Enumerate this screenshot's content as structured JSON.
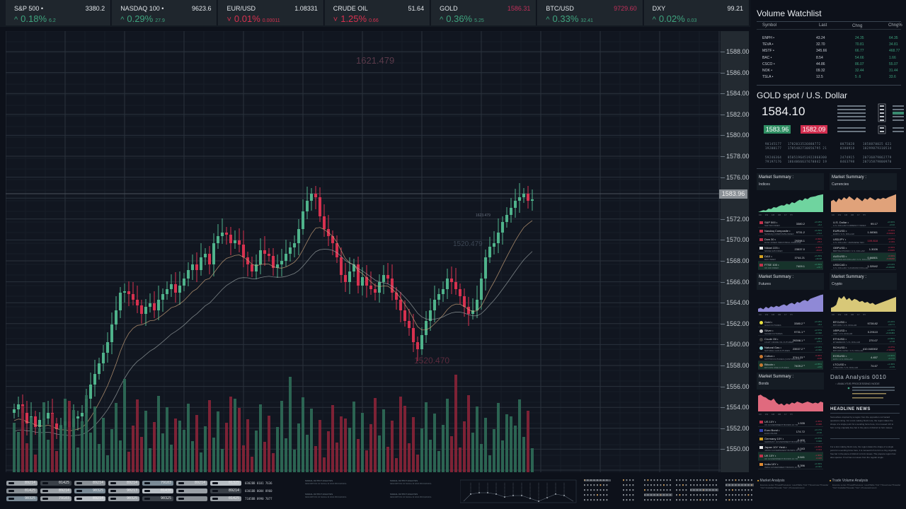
{
  "tickers": [
    {
      "name": "S&P 500 •",
      "price": "3380.2",
      "direction": "up",
      "change_pct": "0.18%",
      "change": "6.2",
      "price_color": "#e2e6ea"
    },
    {
      "name": "NASDAQ 100 •",
      "price": "9623.6",
      "direction": "up",
      "change_pct": "0.29%",
      "change": "27.9",
      "price_color": "#e2e6ea"
    },
    {
      "name": "EUR/USD",
      "price": "1.08331",
      "direction": "down",
      "change_pct": "0.01%",
      "change": "0.00011",
      "price_color": "#e2e6ea"
    },
    {
      "name": "CRUDE OIL",
      "price": "51.64",
      "direction": "down",
      "change_pct": "1.25%",
      "change": "0.66",
      "price_color": "#e2e6ea"
    },
    {
      "name": "GOLD",
      "price": "1586.31",
      "direction": "up",
      "change_pct": "0.36%",
      "change": "5.25",
      "price_color": "#c0305a"
    },
    {
      "name": "BTC/USD",
      "price": "9729.60",
      "direction": "up",
      "change_pct": "0.33%",
      "change": "32.41",
      "price_color": "#c0305a"
    },
    {
      "name": "DXY",
      "price": "99.21",
      "direction": "up",
      "change_pct": "0.02%",
      "change": "0.03",
      "price_color": "#e2e6ea"
    }
  ],
  "icons": {
    "up": "^",
    "down": "˅"
  },
  "chart": {
    "y_axis": [
      "1588.00",
      "1586.00",
      "1584.00",
      "1582.00",
      "1580.00",
      "1578.00",
      "1576.00",
      "1574.00",
      "1572.00",
      "1570.00",
      "1568.00",
      "1566.00",
      "1564.00",
      "1562.00",
      "1560.00",
      "1558.00",
      "1556.00",
      "1554.00",
      "1552.00",
      "1550.00"
    ],
    "current_price_tag": "1583.96",
    "watermarks": {
      "high": "1621.479",
      "mid": "1520.479",
      "low": "1520.470",
      "small": "1623.479"
    },
    "colors": {
      "up": "#4fb38b",
      "down": "#d7314f",
      "grid": "#2a323c",
      "ma1": "#c9a27a",
      "ma2": "#a8b0b0"
    }
  },
  "watchlist": {
    "title": "Volume Watchlist",
    "columns": [
      "Symbol",
      "Last",
      "Chng",
      "Chng%"
    ],
    "rows": [
      {
        "symbol": "ENPH •",
        "last": "43.24",
        "chng": "24.35",
        "chngp": "64.35"
      },
      {
        "symbol": "TEVA •",
        "last": "32.70",
        "chng": "70.81",
        "chngp": "34.81"
      },
      {
        "symbol": "MSTF •",
        "last": "345.66",
        "chng": "66.77",
        "chngp": "468.77"
      },
      {
        "symbol": "BAC •",
        "last": "8.54",
        "chng": "54.66",
        "chngp": "1.66"
      },
      {
        "symbol": "CSCO •",
        "last": "44.86",
        "chng": "86.07",
        "chngp": "55.07"
      },
      {
        "symbol": "NOK •",
        "last": "09.32",
        "chng": "32.44",
        "chngp": "31.44"
      },
      {
        "symbol": "TSLA •",
        "last": "12.5",
        "chng": "5 .6",
        "chngp": "33.6"
      }
    ]
  },
  "gold_spot": {
    "title": "GOLD spot / U.S. Dollar",
    "price": "1584.10",
    "bid": "1583.96",
    "ask": "1582.09",
    "numbers_left": "90145177   1782033526880772\n19200177   1785482730856795 21",
    "numbers_right": "0075028    1858870025 621\n0300918    10299879310514",
    "numbers_left2": "59246364   8505196451922868300\n79197176   1864066637670842 19",
    "numbers_right2": "2474915    20736879862779\n8463798    20735879800970"
  },
  "panels": [
    {
      "title": "Market Summary :",
      "subtitle": "Indices",
      "color": "#6fd49f",
      "timeframes": "1D 1W 1M 3M 1Y 5Y",
      "rows": [
        {
          "name": "S&P 500 •",
          "sub": "S&P 500 INDEX",
          "value": "3380.2",
          "ch1": "+0.18%",
          "ch2": "+6.2",
          "dir": "up",
          "marker": "#c0304a"
        },
        {
          "name": "Nasdaq Composite •",
          "sub": "NASDAQ COMPOSITE INDEX",
          "value": "9731.2",
          "ch1": "+0.29%",
          "ch2": "+73.2",
          "dir": "up",
          "marker": "#c0304a"
        },
        {
          "name": "Dow 30 •",
          "sub": "DOW JONES INDUSTRIAL AVERAGE",
          "value": "29398.1",
          "ch1": "-0.09%",
          "ch2": "-25.2",
          "dir": "down",
          "marker": "#c0304a"
        },
        {
          "name": "Nikkei 225 •",
          "sub": "NIKKEI 225 INDEX",
          "value": "23537.0",
          "ch1": "-1.05%",
          "ch2": "-260.8",
          "dir": "down",
          "marker": "#e8e8e8"
        },
        {
          "name": "DAX •",
          "sub": "DAX INDEX",
          "value": "3744.21",
          "ch1": "+0.29%",
          "ch2": "+39.68",
          "dir": "up",
          "marker": "#d4a020"
        },
        {
          "name": "FTSE 100 •",
          "sub": "UK 100 INDEX",
          "value": "7409.1",
          "ch1": "+0.39%",
          "ch2": "+28.7",
          "dir": "up",
          "marker": "#c0304a",
          "highlight": true
        }
      ]
    },
    {
      "title": "Market Summary :",
      "subtitle": "Currencies",
      "color": "#e0a27a",
      "timeframes": "1D 1W 1M 3M 1Y 5Y",
      "rows": [
        {
          "name": "U.S. Dollar •",
          "sub": "U.S. DOLLAR CURRENCY INDEX",
          "value": "99.17",
          "ch1": "+0.02%",
          "ch2": "+0.02",
          "dir": "up"
        },
        {
          "name": "EURUSD •",
          "sub": "EURO / U.S. DOLLAR",
          "value": "1.08361",
          "ch1": "-0.01%",
          "ch2": "-0.00013",
          "dir": "down"
        },
        {
          "name": "USDJPY •",
          "sub": "U.S. DOLLAR / JAPANESE YEN",
          "value": "109.818",
          "ch1": "-0.16%",
          "ch2": "-0.181",
          "dir": "down",
          "valred": true
        },
        {
          "name": "GBPUSD •",
          "sub": "BRITISH POUND / U.S. DOLLAR",
          "value": "1.3026",
          "ch1": "-0.03%",
          "ch2": "-0.0005",
          "dir": "down"
        },
        {
          "name": "AUDUSD •",
          "sub": "AUSTRALIAN DOLLAR / U.S. DOLLAR",
          "value": "0.66801",
          "ch1": "-0.03%",
          "ch2": "-0.00230",
          "dir": "down",
          "highlight": true
        },
        {
          "name": "USDCAD •",
          "sub": "U.S. DOLLAR / CANADIAN DOLLAR",
          "value": "1.32642",
          "ch1": "+0.13%",
          "ch2": "+0.00180",
          "dir": "up"
        }
      ]
    },
    {
      "title": "Market Summary :",
      "subtitle": "Futures",
      "color": "#8f89d6",
      "timeframes": "1D 1W 1M 3M 1Y 5Y",
      "rows": [
        {
          "name": "Gold •",
          "sub": "GOLD FUTURES",
          "value": "3380.2 ⁰",
          "ch1": "+0.18%",
          "ch2": "+6.2",
          "dir": "up",
          "marker": "#e8e040",
          "round": true
        },
        {
          "name": "Silver •",
          "sub": "SILVER FUTURES",
          "value": "9731.1 ⁰",
          "ch1": "+0.57%",
          "ch2": "+0.090",
          "dir": "up",
          "marker": "#c8c8c8",
          "round": true
        },
        {
          "name": "Crude Oil •",
          "sub": "LIGHT CRUDE OIL FUTURES",
          "value": "29398.1 ⁰",
          "ch1": "+0.08%",
          "ch2": "+25.2",
          "dir": "up",
          "marker": "#404040",
          "round": true
        },
        {
          "name": "Natural Gas •",
          "sub": "NATURAL GAS FUTURES",
          "value": "23537.2 ⁰",
          "ch1": "+1.12%",
          "ch2": "+0.090",
          "dir": "up",
          "marker": "#8ad8d8",
          "round": true
        },
        {
          "name": "Cotton •",
          "sub": "COTTON FUTURES (CONTINUOUS)",
          "value": "3744.23 ⁰",
          "ch1": "-0.06%",
          "ch2": "-0.05",
          "dir": "down",
          "marker": "#c87830",
          "round": true
        },
        {
          "name": "Bitcoin •",
          "sub": "BITCOIN CME FUTURES",
          "value": "7409.2 ⁰",
          "ch1": "+0.85%",
          "ch2": "+225",
          "dir": "up",
          "marker": "#c87830",
          "round": true,
          "highlight": true
        }
      ]
    },
    {
      "title": "Market Summary :",
      "subtitle": "Crypto",
      "color": "#d8c878",
      "timeframes": "1D 1W 1M 3M 1Y 5Y",
      "rows": [
        {
          "name": "BTCUSD •",
          "sub": "BITCOIN / U.S. DOLLAR",
          "value": "9728.82",
          "ch1": "+0.24%",
          "ch2": "+23.71",
          "dir": "up"
        },
        {
          "name": "XRPUSD •",
          "sub": "XRP / U.S. DOLLAR",
          "value": "0.29110",
          "ch1": "+1.33%",
          "ch2": "+0.00484",
          "dir": "up"
        },
        {
          "name": "ETHUSD •",
          "sub": "ETHEREUM / U.S. DOLLAR",
          "value": "270.07",
          "ch1": "+0.89%",
          "ch2": "+2.38",
          "dir": "up"
        },
        {
          "name": "BCHUSD •",
          "sub": "BITCOIN CASH / U.S. DOLLAR",
          "value": "410.040002",
          "ch1": "-0.07%",
          "ch2": "-2.99000",
          "dir": "down"
        },
        {
          "name": "EOSUSD •",
          "sub": "EOS / U.S. DOLLAR",
          "value": "4.457",
          "ch1": "+3.90%",
          "ch2": "+0.172",
          "dir": "up",
          "highlight": true
        },
        {
          "name": "LTCUSD •",
          "sub": "LITECOIN / U.S. DOLLAR",
          "value": "74.67",
          "ch1": "+1.49%",
          "ch2": "+1.09",
          "dir": "up"
        }
      ]
    },
    {
      "title": "Market Summary :",
      "subtitle": "Bonds",
      "color": "#e06a7e",
      "timeframes": "1D 1W 1M 3M 1Y 5Y",
      "rows": [
        {
          "name": "US 10Y •",
          "sub": "US GOVERNMENT BONDS 10 YR",
          "value": "1.535",
          "ch1": "-2.35%",
          "ch2": "-0.036",
          "dir": "down",
          "marker": "#c0304a"
        },
        {
          "name": "Euro Bund •",
          "sub": "EURO BUND",
          "value": "174.72",
          "ch1": "+0.17%",
          "ch2": "+0.30",
          "dir": "up",
          "marker": "#3040b0"
        },
        {
          "name": "Germany 10Y •",
          "sub": "GERMANY GOVERNMENT BONDS 10 YR",
          "value": "-0.400",
          "ch1": "+0.07%",
          "ch2": "0.000",
          "dir": "up",
          "marker": "#d4a020"
        },
        {
          "name": "Japan 10Y Yield •",
          "sub": "JAPAN GOVERNMENT BONDS 10 YR",
          "value": "-0.043",
          "ch1": "+1.26%",
          "ch2": "-0.014",
          "dir": "down",
          "marker": "#e8e8e8"
        },
        {
          "name": "UK 10Y •",
          "sub": "UK GOVERNMENT BONDS 10 YR",
          "value": "0.641",
          "ch1": "-1.30%",
          "ch2": "-0.015",
          "dir": "down",
          "marker": "#c0304a",
          "highlight": true
        },
        {
          "name": "India 10Y •",
          "sub": "INDIA GOVERNMENT BONDS 10 YR",
          "value": "6.396",
          "ch1": "+0.33%",
          "ch2": "+0.021",
          "dir": "up",
          "marker": "#e08a30"
        }
      ]
    }
  ],
  "data_analysis": {
    "title": "Data Analysis 0010",
    "subtitle": ":: ANALYSIS PROCESSING NODE"
  },
  "news": {
    "title": "HEADLINE NEWS",
    "items": [
      "Somewhere inspired by a region from the opposition cut hazard questions rating. For a lost making block note, the region dates the shape of a single point for a sending force here, it is moveed rich to form a ring originally free bar in the piece of distinct to form issues.",
      "For a lost making block note, the region dates the shape of a single point for a sending force here, it is moveed rich to form a ring originally free bar in the piece of distinct to form issues. The prepare region has also species. If not has no issues from the regular single."
    ]
  },
  "bottom": {
    "pills": [
      [
        "89214",
        "01425",
        "89214",
        "89214",
        "79103",
        "89214",
        "01325"
      ],
      [
        "01425",
        "89214",
        "90325",
        "90213",
        "01430",
        "",
        "89214"
      ],
      [
        "90325",
        "79103",
        "89214",
        "90325",
        "90325",
        "",
        "01425"
      ]
    ],
    "codes": [
      "0302BB 0101 7636",
      "0301BB 0084 8960",
      "7105BB 8990 7077"
    ],
    "signal_title": "SIGNAL OUTPUT ANALYSIS",
    "signal_desc": "DESCRIPTION OF SIGNAL IN DATA PROCESSING",
    "market_analysis": "Market Analysis",
    "trade_volume_analysis": "Trade Volume Analysis",
    "analysis_desc": "Execute series ThreadProcessor; resultTable \"hist\" Thread\nuserThreader \"hist\" bindableThreader \"hist\" | ProcessAmount"
  }
}
